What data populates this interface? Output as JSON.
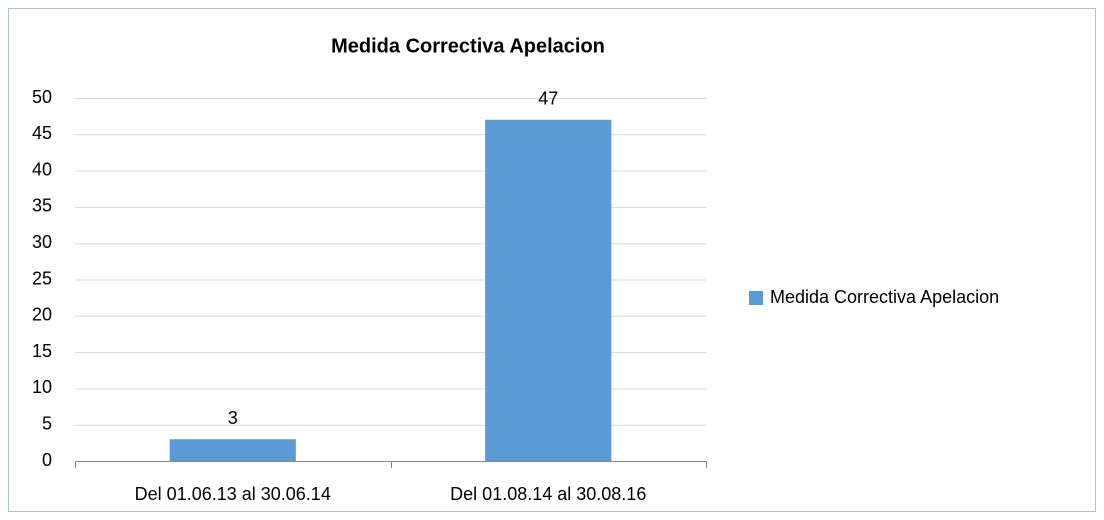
{
  "chart_data": {
    "type": "bar",
    "title": "Medida Correctiva Apelacion",
    "categories": [
      "Del 01.06.13 al 30.06.14",
      "Del 01.08.14 al 30.08.16"
    ],
    "series": [
      {
        "name": "Medida Correctiva Apelacion",
        "color": "#5b9bd5",
        "values": [
          3,
          47
        ]
      }
    ],
    "ylim": [
      0,
      50
    ],
    "yticks": [
      0,
      5,
      10,
      15,
      20,
      25,
      30,
      35,
      40,
      45,
      50
    ],
    "grid": true,
    "legend": "right"
  }
}
